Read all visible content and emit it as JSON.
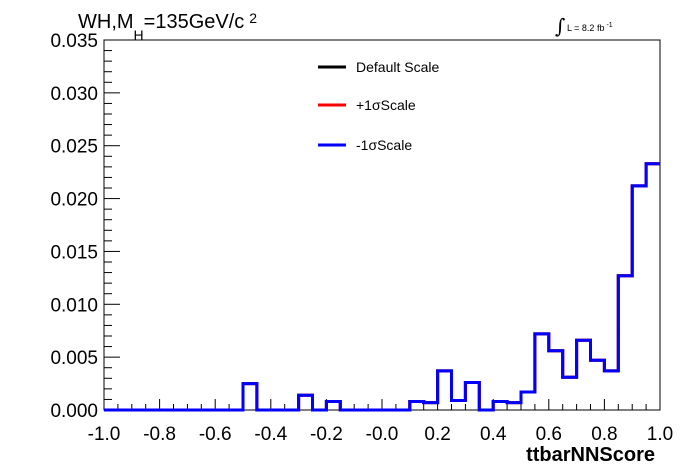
{
  "chart_data": {
    "type": "line",
    "title": {
      "process": "WH,M",
      "subscript": "H",
      "mass": "=135GeV/c",
      "superscript": "2"
    },
    "luminosity": {
      "integral_sign": "∫",
      "label": "L = 8.2 fb",
      "exponent": "-1"
    },
    "xlabel": "ttbarNNScore",
    "ylabel": "",
    "xlim": [
      -1.0,
      1.0
    ],
    "ylim": [
      0.0,
      0.035
    ],
    "x_ticks": [
      "-1.0",
      "-0.8",
      "-0.6",
      "-0.4",
      "-0.2",
      "-0.0",
      "0.2",
      "0.4",
      "0.6",
      "0.8",
      "1.0"
    ],
    "y_ticks": [
      "0.000",
      "0.005",
      "0.010",
      "0.015",
      "0.020",
      "0.025",
      "0.030",
      "0.035"
    ],
    "bin_edges": [
      -1.0,
      -0.95,
      -0.9,
      -0.85,
      -0.8,
      -0.75,
      -0.7,
      -0.65,
      -0.6,
      -0.55,
      -0.5,
      -0.45,
      -0.4,
      -0.35,
      -0.3,
      -0.25,
      -0.2,
      -0.15,
      -0.1,
      -0.05,
      0.0,
      0.05,
      0.1,
      0.15,
      0.2,
      0.25,
      0.3,
      0.35,
      0.4,
      0.45,
      0.5,
      0.55,
      0.6,
      0.65,
      0.7,
      0.75,
      0.8,
      0.85,
      0.9,
      0.95,
      1.0
    ],
    "series": [
      {
        "name": "Default Scale",
        "color": "#000000",
        "values": [
          0,
          0,
          0,
          0,
          0,
          0,
          0,
          0,
          0,
          0,
          0.0025,
          0,
          0,
          0,
          0.0014,
          0,
          0.0008,
          0,
          0,
          0,
          0,
          0,
          0.0008,
          0.0007,
          0.0037,
          0.0009,
          0.0026,
          0,
          0.0008,
          0.0007,
          0.0017,
          0.0072,
          0.0056,
          0.0031,
          0.0066,
          0.0047,
          0.0037,
          0.0127,
          0.0212,
          0.0233
        ]
      },
      {
        "name": "+1σScale",
        "color": "#ff0000",
        "values": [
          0,
          0,
          0,
          0,
          0,
          0,
          0,
          0,
          0,
          0,
          0.0025,
          0,
          0,
          0,
          0.0014,
          0,
          0.0008,
          0,
          0,
          0,
          0,
          0,
          0.0008,
          0.0007,
          0.0037,
          0.0009,
          0.0026,
          0,
          0.0008,
          0.0007,
          0.0017,
          0.0072,
          0.0056,
          0.0031,
          0.0066,
          0.0047,
          0.0037,
          0.0127,
          0.0212,
          0.0233
        ]
      },
      {
        "name": "-1σScale",
        "color": "#0000ff",
        "values": [
          0,
          0,
          0,
          0,
          0,
          0,
          0,
          0,
          0,
          0,
          0.0025,
          0,
          0,
          0,
          0.0014,
          0,
          0.0008,
          0,
          0,
          0,
          0,
          0,
          0.0008,
          0.0007,
          0.0037,
          0.0009,
          0.0026,
          0,
          0.0008,
          0.0007,
          0.0017,
          0.0072,
          0.0056,
          0.0031,
          0.0066,
          0.0047,
          0.0037,
          0.0127,
          0.0212,
          0.0233
        ]
      }
    ],
    "legend_placement": "top-center",
    "grid": false
  }
}
